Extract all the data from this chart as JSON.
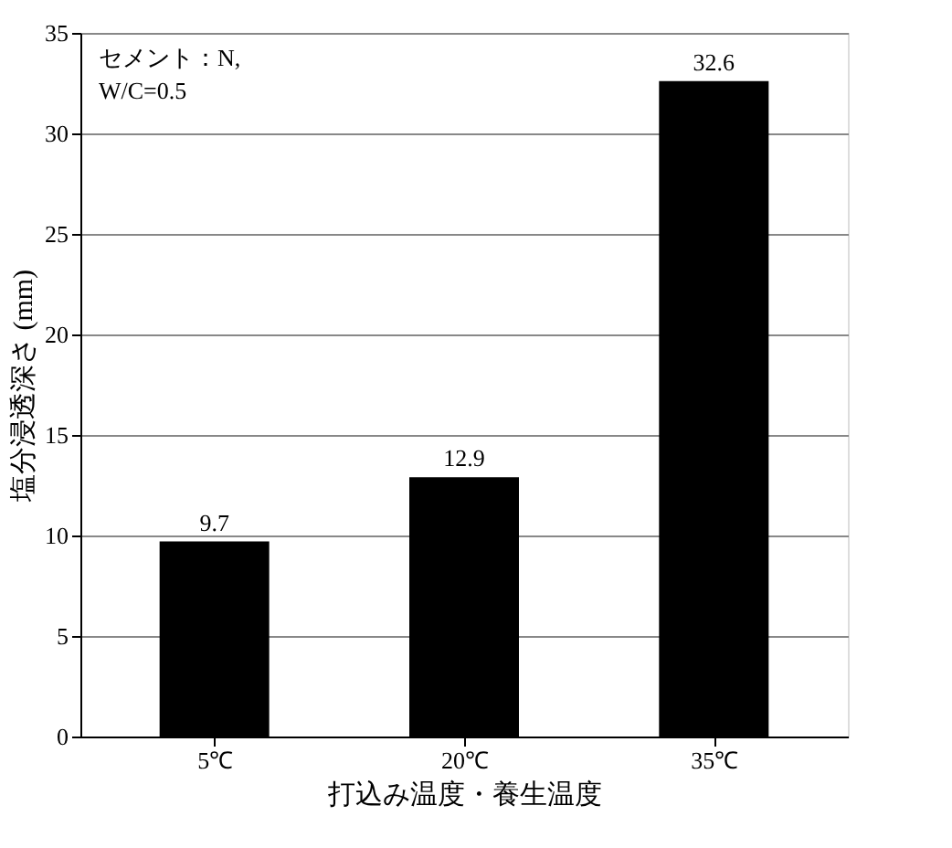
{
  "chart_data": {
    "type": "bar",
    "xlabel": "打込み温度・養生温度",
    "ylabel": "塩分浸透深さ (mm)",
    "categories": [
      "5℃",
      "20℃",
      "35℃"
    ],
    "values": [
      9.7,
      12.9,
      32.6
    ],
    "color": "#000000",
    "ylim": [
      0,
      35
    ],
    "yticks": [
      0,
      5,
      10,
      15,
      20,
      25,
      30,
      35
    ],
    "grid": "y",
    "data_labels": true,
    "annotations": [
      "セメント：N,",
      "W/C=0.5"
    ]
  }
}
